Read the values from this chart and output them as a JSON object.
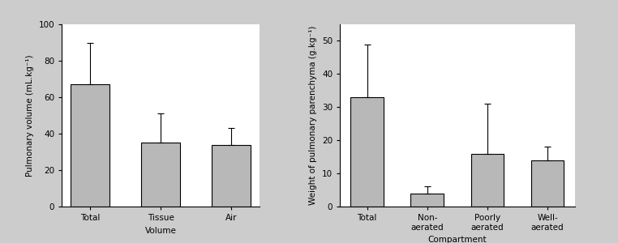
{
  "left": {
    "categories": [
      "Total",
      "Tissue",
      "Air"
    ],
    "values": [
      67,
      35,
      34
    ],
    "errors_up": [
      23,
      16,
      9
    ],
    "errors_down": [
      0,
      0,
      0
    ],
    "ylabel": "Pulmonary volume (mL.kg⁻¹)",
    "xlabel": "Volume",
    "ylim": [
      0,
      100
    ],
    "yticks": [
      0,
      20,
      40,
      60,
      80,
      100
    ]
  },
  "right": {
    "categories": [
      "Total",
      "Non-\naerated",
      "Poorly\naerated",
      "Well-\naerated"
    ],
    "values": [
      33,
      4,
      16,
      14
    ],
    "errors_up": [
      16,
      2,
      15,
      4
    ],
    "errors_down": [
      0,
      0,
      0,
      0
    ],
    "ylabel": "Weight of pulmonary parenchyma (g.kg⁻¹)",
    "xlabel": "Compartment",
    "ylim": [
      0,
      55
    ],
    "yticks": [
      0,
      10,
      20,
      30,
      40,
      50
    ]
  },
  "bar_color": "#b8b8b8",
  "bar_edgecolor": "#000000",
  "bar_width": 0.55,
  "capsize": 3,
  "elinewidth": 0.8,
  "background_color": "#ffffff",
  "frame_color": "#cccccc",
  "label_fontsize": 7.5,
  "tick_fontsize": 7.5
}
